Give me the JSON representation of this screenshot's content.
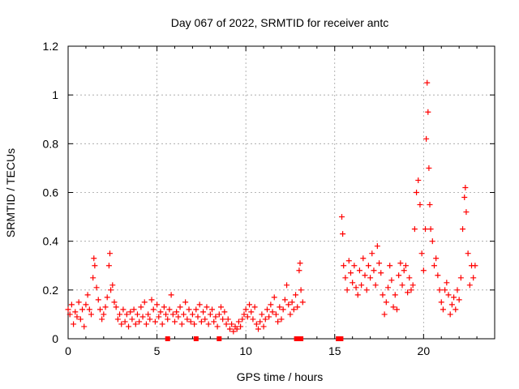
{
  "chart_data": {
    "type": "scatter",
    "title": "Day 067 of 2022, SRMTID for receiver antc",
    "xlabel": "GPS time / hours",
    "ylabel": "SRMTID / TECUs",
    "xlim": [
      0,
      24
    ],
    "ylim": [
      0,
      1.2
    ],
    "x_ticks": [
      0,
      5,
      10,
      15,
      20
    ],
    "y_ticks": [
      0,
      0.2,
      0.4,
      0.6,
      0.8,
      1,
      1.2
    ],
    "x_tick_labels": [
      "0",
      "5",
      "10",
      "15",
      "20"
    ],
    "y_tick_labels": [
      "0",
      "0.2",
      "0.4",
      "0.6",
      "0.8",
      "1",
      "1.2"
    ],
    "grid": true,
    "marker": "+",
    "color": "#ff0000",
    "series": [
      {
        "name": "SRMTID",
        "data": [
          [
            0.0,
            0.12
          ],
          [
            0.1,
            0.1
          ],
          [
            0.2,
            0.14
          ],
          [
            0.3,
            0.06
          ],
          [
            0.4,
            0.11
          ],
          [
            0.5,
            0.09
          ],
          [
            0.6,
            0.15
          ],
          [
            0.7,
            0.08
          ],
          [
            0.8,
            0.12
          ],
          [
            0.9,
            0.05
          ],
          [
            1.0,
            0.14
          ],
          [
            1.1,
            0.18
          ],
          [
            1.2,
            0.12
          ],
          [
            1.3,
            0.1
          ],
          [
            1.4,
            0.25
          ],
          [
            1.45,
            0.33
          ],
          [
            1.5,
            0.3
          ],
          [
            1.6,
            0.21
          ],
          [
            1.7,
            0.16
          ],
          [
            1.8,
            0.12
          ],
          [
            1.9,
            0.08
          ],
          [
            2.0,
            0.1
          ],
          [
            2.1,
            0.13
          ],
          [
            2.2,
            0.17
          ],
          [
            2.3,
            0.3
          ],
          [
            2.35,
            0.35
          ],
          [
            2.4,
            0.2
          ],
          [
            2.5,
            0.22
          ],
          [
            2.6,
            0.15
          ],
          [
            2.7,
            0.13
          ],
          [
            2.8,
            0.08
          ],
          [
            2.9,
            0.1
          ],
          [
            3.0,
            0.06
          ],
          [
            3.1,
            0.12
          ],
          [
            3.2,
            0.07
          ],
          [
            3.3,
            0.1
          ],
          [
            3.4,
            0.05
          ],
          [
            3.5,
            0.11
          ],
          [
            3.6,
            0.08
          ],
          [
            3.7,
            0.12
          ],
          [
            3.8,
            0.06
          ],
          [
            3.9,
            0.1
          ],
          [
            4.0,
            0.07
          ],
          [
            4.1,
            0.13
          ],
          [
            4.2,
            0.09
          ],
          [
            4.3,
            0.15
          ],
          [
            4.4,
            0.06
          ],
          [
            4.5,
            0.1
          ],
          [
            4.6,
            0.08
          ],
          [
            4.7,
            0.16
          ],
          [
            4.8,
            0.12
          ],
          [
            4.9,
            0.07
          ],
          [
            5.0,
            0.14
          ],
          [
            5.1,
            0.09
          ],
          [
            5.2,
            0.11
          ],
          [
            5.3,
            0.06
          ],
          [
            5.4,
            0.13
          ],
          [
            5.5,
            0.1
          ],
          [
            5.6,
            0.08
          ],
          [
            5.7,
            0.12
          ],
          [
            5.8,
            0.18
          ],
          [
            5.9,
            0.1
          ],
          [
            6.0,
            0.07
          ],
          [
            6.1,
            0.11
          ],
          [
            6.2,
            0.09
          ],
          [
            6.3,
            0.13
          ],
          [
            6.4,
            0.06
          ],
          [
            6.5,
            0.1
          ],
          [
            6.6,
            0.15
          ],
          [
            6.7,
            0.08
          ],
          [
            6.8,
            0.12
          ],
          [
            6.9,
            0.07
          ],
          [
            7.0,
            0.1
          ],
          [
            7.1,
            0.06
          ],
          [
            7.2,
            0.12
          ],
          [
            7.3,
            0.09
          ],
          [
            7.4,
            0.14
          ],
          [
            7.5,
            0.07
          ],
          [
            7.6,
            0.11
          ],
          [
            7.7,
            0.08
          ],
          [
            7.8,
            0.13
          ],
          [
            7.9,
            0.06
          ],
          [
            8.0,
            0.1
          ],
          [
            8.1,
            0.12
          ],
          [
            8.2,
            0.07
          ],
          [
            8.3,
            0.09
          ],
          [
            8.4,
            0.05
          ],
          [
            8.5,
            0.1
          ],
          [
            8.6,
            0.13
          ],
          [
            8.7,
            0.08
          ],
          [
            8.8,
            0.11
          ],
          [
            8.9,
            0.06
          ],
          [
            9.0,
            0.08
          ],
          [
            9.1,
            0.04
          ],
          [
            9.2,
            0.06
          ],
          [
            9.3,
            0.03
          ],
          [
            9.4,
            0.05
          ],
          [
            9.5,
            0.04
          ],
          [
            9.6,
            0.07
          ],
          [
            9.7,
            0.05
          ],
          [
            9.8,
            0.08
          ],
          [
            9.9,
            0.1
          ],
          [
            10.0,
            0.12
          ],
          [
            10.1,
            0.09
          ],
          [
            10.2,
            0.14
          ],
          [
            10.3,
            0.11
          ],
          [
            10.4,
            0.08
          ],
          [
            10.5,
            0.13
          ],
          [
            10.6,
            0.06
          ],
          [
            10.7,
            0.04
          ],
          [
            10.8,
            0.07
          ],
          [
            10.9,
            0.1
          ],
          [
            11.0,
            0.05
          ],
          [
            11.1,
            0.08
          ],
          [
            11.2,
            0.12
          ],
          [
            11.3,
            0.09
          ],
          [
            11.4,
            0.14
          ],
          [
            11.5,
            0.11
          ],
          [
            11.6,
            0.17
          ],
          [
            11.7,
            0.1
          ],
          [
            11.8,
            0.07
          ],
          [
            11.9,
            0.13
          ],
          [
            12.0,
            0.08
          ],
          [
            12.1,
            0.12
          ],
          [
            12.2,
            0.16
          ],
          [
            12.3,
            0.22
          ],
          [
            12.4,
            0.14
          ],
          [
            12.5,
            0.1
          ],
          [
            12.6,
            0.15
          ],
          [
            12.7,
            0.12
          ],
          [
            12.8,
            0.18
          ],
          [
            12.9,
            0.13
          ],
          [
            13.0,
            0.28
          ],
          [
            13.05,
            0.31
          ],
          [
            13.1,
            0.2
          ],
          [
            13.2,
            0.15
          ],
          [
            15.4,
            0.5
          ],
          [
            15.45,
            0.43
          ],
          [
            15.5,
            0.3
          ],
          [
            15.6,
            0.25
          ],
          [
            15.7,
            0.2
          ],
          [
            15.8,
            0.32
          ],
          [
            15.9,
            0.27
          ],
          [
            16.0,
            0.23
          ],
          [
            16.1,
            0.3
          ],
          [
            16.2,
            0.21
          ],
          [
            16.3,
            0.18
          ],
          [
            16.4,
            0.28
          ],
          [
            16.5,
            0.22
          ],
          [
            16.6,
            0.33
          ],
          [
            16.7,
            0.26
          ],
          [
            16.8,
            0.2
          ],
          [
            16.9,
            0.3
          ],
          [
            17.0,
            0.25
          ],
          [
            17.1,
            0.35
          ],
          [
            17.2,
            0.28
          ],
          [
            17.3,
            0.22
          ],
          [
            17.4,
            0.38
          ],
          [
            17.5,
            0.31
          ],
          [
            17.6,
            0.27
          ],
          [
            17.7,
            0.18
          ],
          [
            17.8,
            0.1
          ],
          [
            17.9,
            0.15
          ],
          [
            18.0,
            0.21
          ],
          [
            18.1,
            0.3
          ],
          [
            18.2,
            0.24
          ],
          [
            18.3,
            0.13
          ],
          [
            18.4,
            0.18
          ],
          [
            18.5,
            0.12
          ],
          [
            18.6,
            0.26
          ],
          [
            18.7,
            0.31
          ],
          [
            18.8,
            0.22
          ],
          [
            18.9,
            0.28
          ],
          [
            19.0,
            0.3
          ],
          [
            19.1,
            0.19
          ],
          [
            19.2,
            0.25
          ],
          [
            19.3,
            0.2
          ],
          [
            19.4,
            0.22
          ],
          [
            19.5,
            0.45
          ],
          [
            19.6,
            0.6
          ],
          [
            19.7,
            0.65
          ],
          [
            19.8,
            0.55
          ],
          [
            19.9,
            0.35
          ],
          [
            20.0,
            0.28
          ],
          [
            20.1,
            0.45
          ],
          [
            20.15,
            0.82
          ],
          [
            20.2,
            1.05
          ],
          [
            20.25,
            0.93
          ],
          [
            20.3,
            0.7
          ],
          [
            20.35,
            0.55
          ],
          [
            20.4,
            0.45
          ],
          [
            20.5,
            0.4
          ],
          [
            20.6,
            0.3
          ],
          [
            20.7,
            0.33
          ],
          [
            20.8,
            0.26
          ],
          [
            20.9,
            0.2
          ],
          [
            21.0,
            0.15
          ],
          [
            21.1,
            0.12
          ],
          [
            21.2,
            0.2
          ],
          [
            21.3,
            0.23
          ],
          [
            21.4,
            0.18
          ],
          [
            21.5,
            0.1
          ],
          [
            21.6,
            0.14
          ],
          [
            21.7,
            0.17
          ],
          [
            21.8,
            0.12
          ],
          [
            21.9,
            0.2
          ],
          [
            22.0,
            0.16
          ],
          [
            22.1,
            0.25
          ],
          [
            22.2,
            0.45
          ],
          [
            22.3,
            0.58
          ],
          [
            22.35,
            0.62
          ],
          [
            22.4,
            0.52
          ],
          [
            22.5,
            0.35
          ],
          [
            22.6,
            0.22
          ],
          [
            22.7,
            0.3
          ],
          [
            22.8,
            0.25
          ],
          [
            22.9,
            0.3
          ]
        ]
      },
      {
        "name": "gap markers",
        "marker": "square",
        "data": [
          [
            5.6,
            0
          ],
          [
            7.2,
            0
          ],
          [
            8.5,
            0
          ],
          [
            12.85,
            0
          ],
          [
            13.1,
            0
          ],
          [
            15.2,
            0
          ],
          [
            15.35,
            0
          ]
        ]
      }
    ]
  }
}
